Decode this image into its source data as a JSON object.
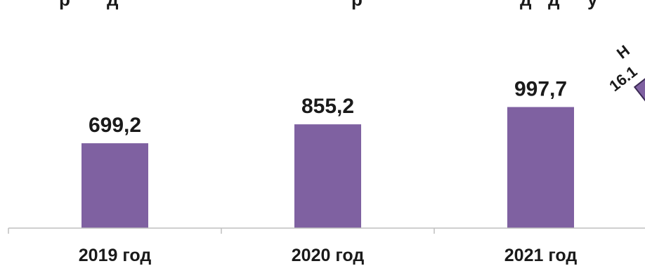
{
  "chart_data": {
    "type": "bar",
    "categories": [
      "2019 год",
      "2020 год",
      "2021 год"
    ],
    "values": [
      699.2,
      855.2,
      997.7
    ],
    "value_labels": [
      "699,2",
      "855,2",
      "997,7"
    ],
    "colors": {
      "bar": "#7f61a1",
      "axis": "#bfbfbf",
      "text": "#1a1a1a"
    },
    "title_fragments": [
      "р",
      "д",
      "р",
      "д",
      "д",
      "у"
    ],
    "callout": {
      "line1": "Н",
      "line2": "16.1"
    },
    "ylim": [
      0,
      1100
    ],
    "grid": false,
    "legend": "none"
  }
}
